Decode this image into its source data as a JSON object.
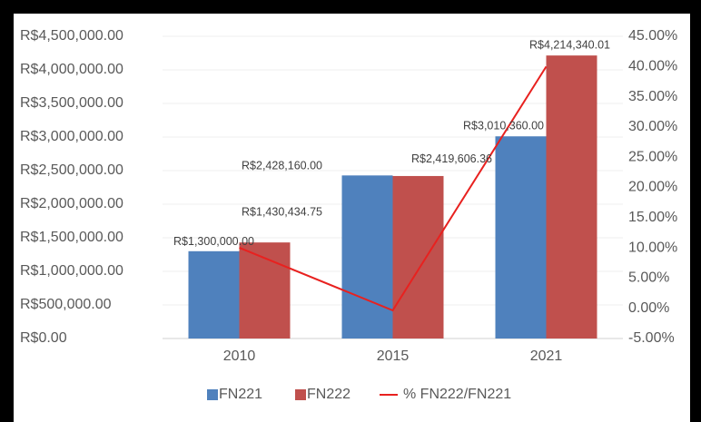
{
  "chart_data": {
    "type": "bar_line",
    "categories": [
      "2010",
      "2015",
      "2021"
    ],
    "series": [
      {
        "name": "FN221",
        "color": "#4f81bd",
        "values": [
          1300000,
          2428160,
          3010360
        ],
        "value_labels": [
          "R$1,300,000.00",
          "R$2,428,160.00",
          "R$3,010,360.00"
        ]
      },
      {
        "name": "FN222",
        "color": "#c0504d",
        "values": [
          1430434.75,
          2419606.36,
          4214340.01
        ],
        "value_labels": [
          "R$1,430,434.75",
          "R$2,419,606.36",
          "R$4,214,340.01"
        ]
      },
      {
        "name": "% FN222/FN221",
        "color": "#e8211f",
        "type": "line",
        "axis": "y2",
        "values": [
          10.03,
          -0.35,
          39.99
        ]
      }
    ],
    "ylim": [
      0,
      4500000
    ],
    "yticks": [
      {
        "value": 0,
        "label": "R$0.00"
      },
      {
        "value": 500000,
        "label": "R$500,000.00"
      },
      {
        "value": 1000000,
        "label": "R$1,000,000.00"
      },
      {
        "value": 1500000,
        "label": "R$1,500,000.00"
      },
      {
        "value": 2000000,
        "label": "R$2,000,000.00"
      },
      {
        "value": 2500000,
        "label": "R$2,500,000.00"
      },
      {
        "value": 3000000,
        "label": "R$3,000,000.00"
      },
      {
        "value": 3500000,
        "label": "R$3,500,000.00"
      },
      {
        "value": 4000000,
        "label": "R$4,000,000.00"
      },
      {
        "value": 4500000,
        "label": "R$4,500,000.00"
      }
    ],
    "y2lim": [
      -5,
      45
    ],
    "y2ticks": [
      {
        "value": -5,
        "label": "-5.00%"
      },
      {
        "value": 0,
        "label": "0.00%"
      },
      {
        "value": 5,
        "label": "5.00%"
      },
      {
        "value": 10,
        "label": "10.00%"
      },
      {
        "value": 15,
        "label": "15.00%"
      },
      {
        "value": 20,
        "label": "20.00%"
      },
      {
        "value": 25,
        "label": "25.00%"
      },
      {
        "value": 30,
        "label": "30.00%"
      },
      {
        "value": 35,
        "label": "35.00%"
      },
      {
        "value": 40,
        "label": "40.00%"
      },
      {
        "value": 45,
        "label": "45.00%"
      }
    ],
    "grid": true,
    "legend": "bottom"
  }
}
